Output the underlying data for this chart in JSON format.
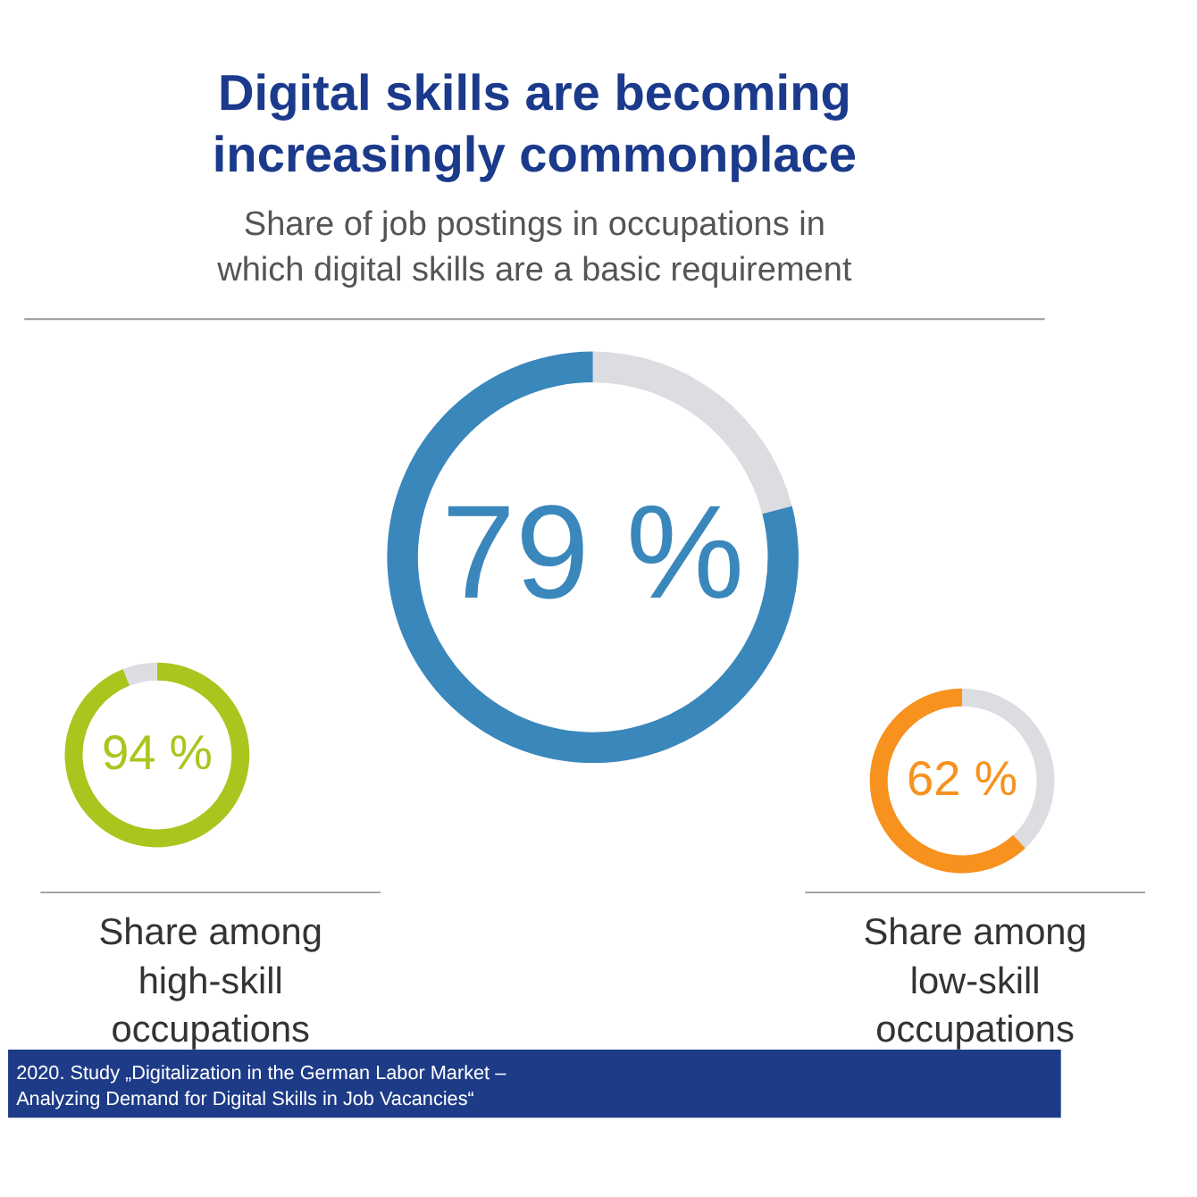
{
  "chart_data": [
    {
      "type": "donut",
      "title": "Digital skills are becoming increasingly commonplace",
      "subtitle": "Share of job postings in occupations in which digital skills are a basic requirement",
      "categories": [
        null,
        null
      ],
      "values": [
        21,
        79
      ],
      "colors": [
        "#dcdde1",
        "#3a87bc"
      ],
      "value_labels": [
        null,
        "79 %"
      ],
      "annotations": [
        "2020. Study „Digitalization in the German Labor Market – Analyzing Demand for Digital Skills in Job Vacancies“"
      ]
    },
    {
      "type": "donut",
      "categories": [
        null,
        null
      ],
      "values": [
        94,
        6
      ],
      "colors": [
        "#a9c61f",
        "#dcdde1"
      ],
      "value_labels": [
        "94 %",
        null
      ],
      "annotations": [
        "Share among high-skill occupations"
      ]
    },
    {
      "type": "donut",
      "categories": [
        null,
        null
      ],
      "values": [
        38,
        62
      ],
      "colors": [
        "#dcdde1",
        "#f7921e"
      ],
      "value_labels": [
        null,
        "62 %"
      ],
      "annotations": [
        "Share among low-skill occupations"
      ]
    }
  ]
}
